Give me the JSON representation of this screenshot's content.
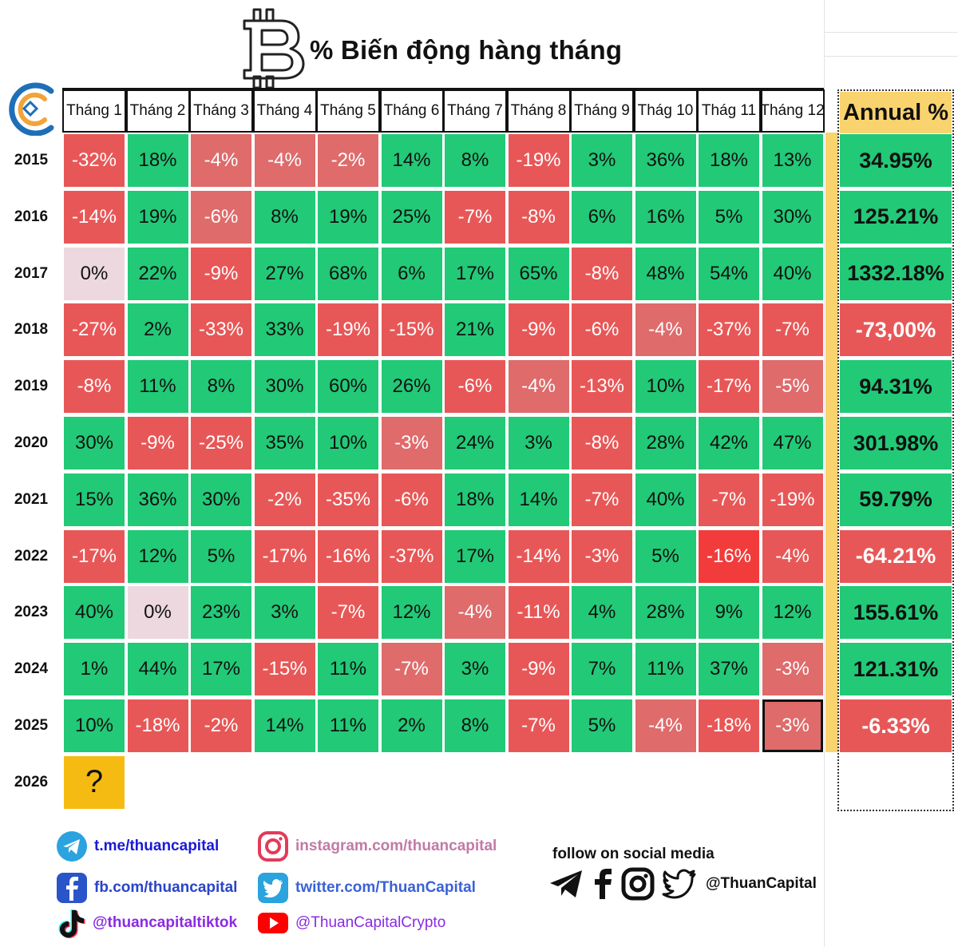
{
  "title": "% Biến động hàng tháng",
  "chart_data": {
    "type": "table",
    "title": "% Biến động hàng tháng",
    "columns": [
      "Tháng 1",
      "Tháng 2",
      "Tháng 3",
      "Tháng 4",
      "Tháng 5",
      "Tháng 6",
      "Tháng 7",
      "Tháng 8",
      "Tháng 9",
      "Thág 10",
      "Thág 11",
      "Tháng 12"
    ],
    "annual_header": "Annual %",
    "rows": [
      {
        "year": "2015",
        "values": [
          "-32%",
          "18%",
          "-4%",
          "-4%",
          "-2%",
          "14%",
          "8%",
          "-19%",
          "3%",
          "36%",
          "18%",
          "13%"
        ],
        "annual": "34.95%"
      },
      {
        "year": "2016",
        "values": [
          "-14%",
          "19%",
          "-6%",
          "8%",
          "19%",
          "25%",
          "-7%",
          "-8%",
          "6%",
          "16%",
          "5%",
          "30%"
        ],
        "annual": "125.21%"
      },
      {
        "year": "2017",
        "values": [
          "0%",
          "22%",
          "-9%",
          "27%",
          "68%",
          "6%",
          "17%",
          "65%",
          "-8%",
          "48%",
          "54%",
          "40%"
        ],
        "annual": "1332.18%"
      },
      {
        "year": "2018",
        "values": [
          "-27%",
          "2%",
          "-33%",
          "33%",
          "-19%",
          "-15%",
          "21%",
          "-9%",
          "-6%",
          "-4%",
          "-37%",
          "-7%"
        ],
        "annual": "-73,00%"
      },
      {
        "year": "2019",
        "values": [
          "-8%",
          "11%",
          "8%",
          "30%",
          "60%",
          "26%",
          "-6%",
          "-4%",
          "-13%",
          "10%",
          "-17%",
          "-5%"
        ],
        "annual": "94.31%"
      },
      {
        "year": "2020",
        "values": [
          "30%",
          "-9%",
          "-25%",
          "35%",
          "10%",
          "-3%",
          "24%",
          "3%",
          "-8%",
          "28%",
          "42%",
          "47%"
        ],
        "annual": "301.98%"
      },
      {
        "year": "2021",
        "values": [
          "15%",
          "36%",
          "30%",
          "-2%",
          "-35%",
          "-6%",
          "18%",
          "14%",
          "-7%",
          "40%",
          "-7%",
          "-19%"
        ],
        "annual": "59.79%"
      },
      {
        "year": "2022",
        "values": [
          "-17%",
          "12%",
          "5%",
          "-17%",
          "-16%",
          "-37%",
          "17%",
          "-14%",
          "-3%",
          "5%",
          "-16%",
          "-4%"
        ],
        "annual": "-64.21%"
      },
      {
        "year": "2023",
        "values": [
          "40%",
          "0%",
          "23%",
          "3%",
          "-7%",
          "12%",
          "-4%",
          "-11%",
          "4%",
          "28%",
          "9%",
          "12%"
        ],
        "annual": "155.61%"
      },
      {
        "year": "2024",
        "values": [
          "1%",
          "44%",
          "17%",
          "-15%",
          "11%",
          "-7%",
          "3%",
          "-9%",
          "7%",
          "11%",
          "37%",
          "-3%"
        ],
        "annual": "121.31%"
      },
      {
        "year": "2025",
        "values": [
          "10%",
          "-18%",
          "-2%",
          "14%",
          "11%",
          "2%",
          "8%",
          "-7%",
          "5%",
          "-4%",
          "-18%",
          "-3%"
        ],
        "annual": "-6.33%"
      },
      {
        "year": "2026",
        "values": [
          "?"
        ],
        "annual": ""
      }
    ],
    "light_negative_cells": [
      [
        0,
        2
      ],
      [
        0,
        3
      ],
      [
        0,
        4
      ],
      [
        1,
        2
      ],
      [
        3,
        9
      ],
      [
        4,
        7
      ],
      [
        4,
        11
      ],
      [
        5,
        5
      ],
      [
        8,
        6
      ],
      [
        9,
        5
      ],
      [
        9,
        11
      ],
      [
        10,
        9
      ],
      [
        10,
        11
      ]
    ],
    "strong_negative_cells": [
      [
        7,
        10
      ]
    ],
    "highlighted_cell": [
      10,
      11
    ],
    "colors": {
      "positive": "#22c977",
      "negative": "#e85757",
      "zero": "#ecd8de",
      "unknown": "#f6bb12",
      "annual_header": "#f9d36e"
    }
  },
  "social": {
    "telegram": "t.me/thuancapital",
    "facebook": "fb.com/thuancapital",
    "tiktok": "@thuancapitaltiktok",
    "instagram": "instagram.com/thuancapital",
    "twitter": "twitter.com/ThuanCapital",
    "youtube": "@ThuanCapitalCrypto",
    "follow_text": "follow on social media",
    "handle": "@ThuanCapital",
    "colors": {
      "telegram": "#1a1ad4",
      "facebook": "#2a44c8",
      "tiktok": "#8a2be2",
      "instagram": "#c27aa6",
      "twitter": "#3a62d6",
      "youtube": "#8a2be2"
    }
  }
}
